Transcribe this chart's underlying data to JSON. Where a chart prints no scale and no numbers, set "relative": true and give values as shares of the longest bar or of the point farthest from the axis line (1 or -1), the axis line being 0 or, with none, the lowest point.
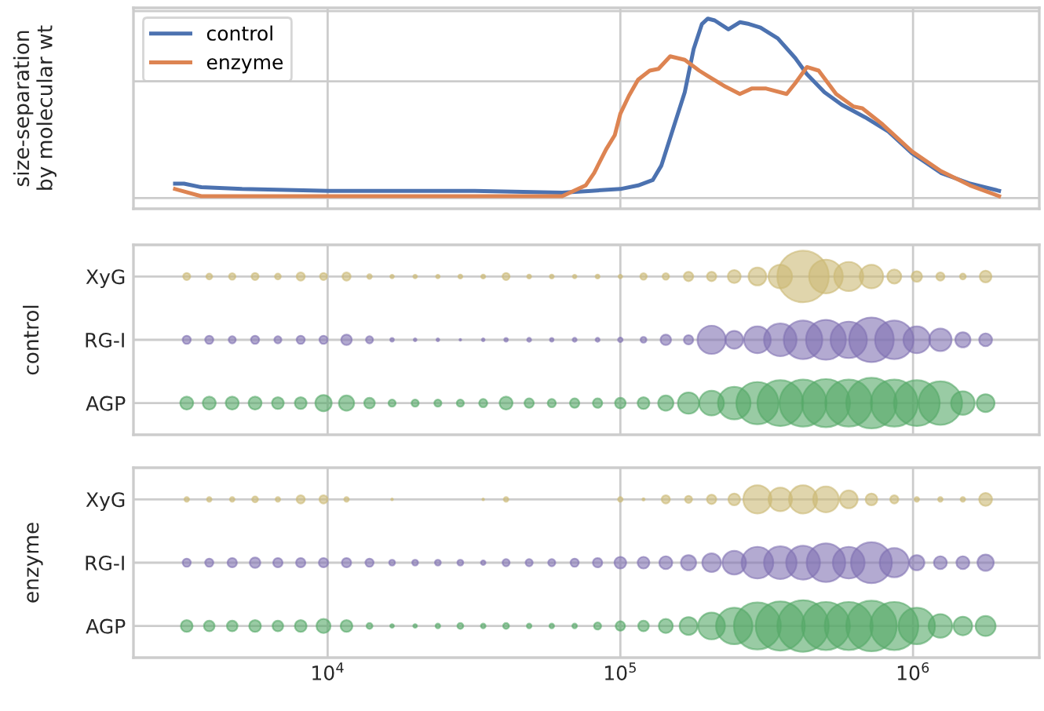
{
  "chart_data": [
    {
      "type": "line",
      "ylabel": "size-separation\nby molecular wt",
      "relative": true,
      "log": "x",
      "xlim": [
        2170,
        2700000
      ],
      "xticks": [
        10000,
        100000,
        1000000
      ],
      "tick_labels": false,
      "grid": true,
      "legend": "top left",
      "series": [
        {
          "name": "control",
          "color": "#4c72b0",
          "x": [
            3010,
            3230,
            3700,
            5100,
            10100,
            31800,
            63300,
            79600,
            100000,
            115000,
            129000,
            138000,
            151000,
            166000,
            178000,
            190000,
            199000,
            210000,
            234000,
            256000,
            275000,
            301000,
            345000,
            396000,
            434000,
            498000,
            571000,
            686000,
            824000,
            991000,
            1245000,
            1567000,
            1968000
          ],
          "values": [
            0.08,
            0.08,
            0.06,
            0.05,
            0.04,
            0.04,
            0.03,
            0.04,
            0.05,
            0.07,
            0.1,
            0.18,
            0.38,
            0.59,
            0.83,
            0.97,
            1.0,
            0.99,
            0.94,
            0.98,
            0.97,
            0.95,
            0.89,
            0.78,
            0.69,
            0.59,
            0.52,
            0.45,
            0.37,
            0.25,
            0.14,
            0.08,
            0.04
          ]
        },
        {
          "name": "enzyme",
          "color": "#dd8452",
          "x": [
            3010,
            3700,
            5100,
            12700,
            31800,
            63300,
            76100,
            81400,
            89300,
            95700,
            100000,
            107000,
            115000,
            126000,
            135000,
            148000,
            166000,
            186000,
            199000,
            229000,
            256000,
            281000,
            315000,
            370000,
            396000,
            434000,
            476000,
            546000,
            626000,
            671000,
            787000,
            991000,
            1245000,
            1567000,
            1968000
          ],
          "values": [
            0.05,
            0.01,
            0.01,
            0.01,
            0.01,
            0.01,
            0.07,
            0.14,
            0.27,
            0.35,
            0.47,
            0.57,
            0.66,
            0.71,
            0.72,
            0.79,
            0.77,
            0.71,
            0.68,
            0.62,
            0.58,
            0.61,
            0.61,
            0.58,
            0.64,
            0.73,
            0.71,
            0.58,
            0.51,
            0.5,
            0.41,
            0.26,
            0.15,
            0.07,
            0.01
          ]
        }
      ]
    },
    {
      "type": "bubble",
      "orientation": "horizontal",
      "ylabel": "control",
      "log": "x",
      "xlim": [
        2170,
        2700000
      ],
      "xticks": [
        10000,
        100000,
        1000000
      ],
      "categories": [
        "XyG",
        "RG-I",
        "AGP"
      ],
      "tick_labels": "y",
      "grid": true,
      "series": [
        {
          "colors": [
            "#ccb974",
            "#8172b3",
            "#55a868"
          ],
          "values": [
            3300,
            3300,
            3300
          ],
          "sizes": [
            0.019,
            0.025,
            0.063
          ]
        },
        {
          "colors": [
            "#ccb974",
            "#8172b3",
            "#55a868"
          ],
          "values": [
            3940,
            3940,
            3940
          ],
          "sizes": [
            0.013,
            0.025,
            0.063
          ]
        },
        {
          "colors": [
            "#ccb974",
            "#8172b3",
            "#55a868"
          ],
          "values": [
            4720,
            4720,
            4720
          ],
          "sizes": [
            0.016,
            0.019,
            0.063
          ]
        },
        {
          "colors": [
            "#ccb974",
            "#8172b3",
            "#55a868"
          ],
          "values": [
            5650,
            5650,
            5650
          ],
          "sizes": [
            0.019,
            0.025,
            0.063
          ]
        },
        {
          "colors": [
            "#ccb974",
            "#8172b3",
            "#55a868"
          ],
          "values": [
            6760,
            6760,
            6760
          ],
          "sizes": [
            0.013,
            0.019,
            0.052
          ]
        },
        {
          "colors": [
            "#ccb974",
            "#8172b3",
            "#55a868"
          ],
          "values": [
            8090,
            8090,
            8090
          ],
          "sizes": [
            0.025,
            0.025,
            0.052
          ]
        },
        {
          "colors": [
            "#ccb974",
            "#8172b3",
            "#55a868"
          ],
          "values": [
            9680,
            9680,
            9680
          ],
          "sizes": [
            0.019,
            0.025,
            0.1
          ]
        },
        {
          "colors": [
            "#ccb974",
            "#8172b3",
            "#55a868"
          ],
          "values": [
            11600,
            11600,
            11600
          ],
          "sizes": [
            0.025,
            0.042,
            0.087
          ]
        },
        {
          "colors": [
            "#ccb974",
            "#8172b3",
            "#55a868"
          ],
          "values": [
            13900,
            13900,
            13900
          ],
          "sizes": [
            0.008,
            0.019,
            0.042
          ]
        },
        {
          "colors": [
            "#ccb974",
            "#8172b3",
            "#55a868"
          ],
          "values": [
            16600,
            16600,
            16600
          ],
          "sizes": [
            0.005,
            0.005,
            0.019
          ]
        },
        {
          "colors": [
            "#ccb974",
            "#8172b3",
            "#55a868"
          ],
          "values": [
            19900,
            19900,
            19900
          ],
          "sizes": [
            0.005,
            0.003,
            0.019
          ]
        },
        {
          "colors": [
            "#ccb974",
            "#8172b3",
            "#55a868"
          ],
          "values": [
            23800,
            23800,
            23800
          ],
          "sizes": [
            0.005,
            0.003,
            0.019
          ]
        },
        {
          "colors": [
            "#ccb974",
            "#8172b3",
            "#55a868"
          ],
          "values": [
            28400,
            28400,
            28400
          ],
          "sizes": [
            0.006,
            0.0012,
            0.019
          ]
        },
        {
          "colors": [
            "#ccb974",
            "#8172b3",
            "#55a868"
          ],
          "values": [
            34000,
            34000,
            34000
          ],
          "sizes": [
            0.006,
            0.003,
            0.025
          ]
        },
        {
          "colors": [
            "#ccb974",
            "#8172b3",
            "#55a868"
          ],
          "values": [
            40700,
            40700,
            40700
          ],
          "sizes": [
            0.019,
            0.005,
            0.063
          ]
        },
        {
          "colors": [
            "#ccb974",
            "#8172b3",
            "#55a868"
          ],
          "values": [
            48800,
            48800,
            48800
          ],
          "sizes": [
            0.006,
            0.006,
            0.033
          ]
        },
        {
          "colors": [
            "#ccb974",
            "#8172b3",
            "#55a868"
          ],
          "values": [
            58300,
            58300,
            58300
          ],
          "sizes": [
            0.006,
            0.005,
            0.025
          ]
        },
        {
          "colors": [
            "#ccb974",
            "#8172b3",
            "#55a868"
          ],
          "values": [
            69800,
            69800,
            69800
          ],
          "sizes": [
            0.005,
            0.006,
            0.033
          ]
        },
        {
          "colors": [
            "#ccb974",
            "#8172b3",
            "#55a868"
          ],
          "values": [
            83600,
            83600,
            83600
          ],
          "sizes": [
            0.006,
            0.006,
            0.033
          ]
        },
        {
          "colors": [
            "#ccb974",
            "#8172b3",
            "#55a868"
          ],
          "values": [
            100000,
            100000,
            100000
          ],
          "sizes": [
            0.005,
            0.008,
            0.042
          ]
        },
        {
          "colors": [
            "#ccb974",
            "#8172b3",
            "#55a868"
          ],
          "values": [
            120000,
            120000,
            120000
          ],
          "sizes": [
            0.016,
            0.013,
            0.052
          ]
        },
        {
          "colors": [
            "#ccb974",
            "#8172b3",
            "#55a868"
          ],
          "values": [
            143000,
            143000,
            143000
          ],
          "sizes": [
            0.016,
            0.042,
            0.087
          ]
        },
        {
          "colors": [
            "#ccb974",
            "#8172b3",
            "#55a868"
          ],
          "values": [
            171000,
            171000,
            171000
          ],
          "sizes": [
            0.033,
            0.033,
            0.17
          ]
        },
        {
          "colors": [
            "#ccb974",
            "#8172b3",
            "#55a868"
          ],
          "values": [
            205000,
            205000,
            205000
          ],
          "sizes": [
            0.033,
            0.3,
            0.23
          ]
        },
        {
          "colors": [
            "#ccb974",
            "#8172b3",
            "#55a868"
          ],
          "values": [
            245000,
            245000,
            245000
          ],
          "sizes": [
            0.063,
            0.12,
            0.4
          ]
        },
        {
          "colors": [
            "#ccb974",
            "#8172b3",
            "#55a868"
          ],
          "values": [
            294000,
            294000,
            294000
          ],
          "sizes": [
            0.12,
            0.27,
            0.67
          ]
        },
        {
          "colors": [
            "#ccb974",
            "#8172b3",
            "#55a868"
          ],
          "values": [
            352000,
            352000,
            352000
          ],
          "sizes": [
            0.21,
            0.4,
            0.79
          ]
        },
        {
          "colors": [
            "#ccb974",
            "#8172b3",
            "#55a868"
          ],
          "values": [
            421000,
            421000,
            421000
          ],
          "sizes": [
            1,
            0.56,
            0.83
          ]
        },
        {
          "colors": [
            "#ccb974",
            "#8172b3",
            "#55a868"
          ],
          "values": [
            504000,
            504000,
            504000
          ],
          "sizes": [
            0.43,
            0.6,
            0.87
          ]
        },
        {
          "colors": [
            "#ccb974",
            "#8172b3",
            "#55a868"
          ],
          "values": [
            603000,
            603000,
            603000
          ],
          "sizes": [
            0.32,
            0.5,
            0.83
          ]
        },
        {
          "colors": [
            "#ccb974",
            "#8172b3",
            "#55a868"
          ],
          "values": [
            721000,
            721000,
            721000
          ],
          "sizes": [
            0.21,
            0.75,
            0.96
          ]
        },
        {
          "colors": [
            "#ccb974",
            "#8172b3",
            "#55a868"
          ],
          "values": [
            863000,
            863000,
            863000
          ],
          "sizes": [
            0.074,
            0.56,
            0.83
          ]
        },
        {
          "colors": [
            "#ccb974",
            "#8172b3",
            "#55a868"
          ],
          "values": [
            1030000,
            1030000,
            1030000
          ],
          "sizes": [
            0.042,
            0.27,
            0.79
          ]
        },
        {
          "colors": [
            "#ccb974",
            "#8172b3",
            "#55a868"
          ],
          "values": [
            1240000,
            1240000,
            1240000
          ],
          "sizes": [
            0.025,
            0.19,
            0.71
          ]
        },
        {
          "colors": [
            "#ccb974",
            "#8172b3",
            "#55a868"
          ],
          "values": [
            1480000,
            1480000,
            1480000
          ],
          "sizes": [
            0.013,
            0.087,
            0.21
          ]
        },
        {
          "colors": [
            "#ccb974",
            "#8172b3",
            "#55a868"
          ],
          "values": [
            1770000,
            1770000,
            1770000
          ],
          "sizes": [
            0.052,
            0.063,
            0.12
          ]
        }
      ]
    },
    {
      "type": "bubble",
      "orientation": "horizontal",
      "ylabel": "enzyme",
      "log": "x",
      "xlim": [
        2170,
        2700000
      ],
      "xticks": [
        {
          "value": 10000,
          "label": "10$^{4}$"
        },
        {
          "value": 100000,
          "label": "10$^{5}$"
        },
        {
          "value": 1000000,
          "label": "10$^{6}$"
        }
      ],
      "categories": [
        "XyG",
        "RG-I",
        "AGP"
      ],
      "grid": true,
      "series": [
        {
          "colors": [
            "#ccb974",
            "#8172b3",
            "#55a868"
          ],
          "values": [
            3300,
            3300,
            3300
          ],
          "sizes": [
            0.008,
            0.025,
            0.052
          ]
        },
        {
          "colors": [
            "#ccb974",
            "#8172b3",
            "#55a868"
          ],
          "values": [
            3940,
            3940,
            3940
          ],
          "sizes": [
            0.008,
            0.025,
            0.042
          ]
        },
        {
          "colors": [
            "#ccb974",
            "#8172b3",
            "#55a868"
          ],
          "values": [
            4720,
            4720,
            4720
          ],
          "sizes": [
            0.008,
            0.033,
            0.042
          ]
        },
        {
          "colors": [
            "#ccb974",
            "#8172b3",
            "#55a868"
          ],
          "values": [
            5650,
            5650,
            5650
          ],
          "sizes": [
            0.013,
            0.042,
            0.052
          ]
        },
        {
          "colors": [
            "#ccb974",
            "#8172b3",
            "#55a868"
          ],
          "values": [
            6760,
            6760,
            6760
          ],
          "sizes": [
            0.008,
            0.033,
            0.042
          ]
        },
        {
          "colors": [
            "#ccb974",
            "#8172b3",
            "#55a868"
          ],
          "values": [
            8090,
            8090,
            8090
          ],
          "sizes": [
            0.025,
            0.033,
            0.052
          ]
        },
        {
          "colors": [
            "#ccb974",
            "#8172b3",
            "#55a868"
          ],
          "values": [
            9680,
            9680,
            9680
          ],
          "sizes": [
            0.025,
            0.033,
            0.074
          ]
        },
        {
          "colors": [
            "#ccb974",
            "#8172b3",
            "#55a868"
          ],
          "values": [
            11600,
            11600,
            11600
          ],
          "sizes": [
            0.008,
            0.033,
            0.052
          ]
        },
        {
          "colors": [
            "#ccb974",
            "#8172b3",
            "#55a868"
          ],
          "values": [
            null,
            13900,
            13900
          ],
          "sizes": [
            null,
            0.025,
            0.013
          ]
        },
        {
          "colors": [
            "#ccb974",
            "#8172b3",
            "#55a868"
          ],
          "values": [
            16600,
            16600,
            16600
          ],
          "sizes": [
            0.0012,
            0.013,
            0.005
          ]
        },
        {
          "colors": [
            "#ccb974",
            "#8172b3",
            "#55a868"
          ],
          "values": [
            null,
            19900,
            19900
          ],
          "sizes": [
            null,
            0.013,
            0.005
          ]
        },
        {
          "colors": [
            "#ccb974",
            "#8172b3",
            "#55a868"
          ],
          "values": [
            null,
            23800,
            23800
          ],
          "sizes": [
            null,
            0.013,
            0.008
          ]
        },
        {
          "colors": [
            "#ccb974",
            "#8172b3",
            "#55a868"
          ],
          "values": [
            null,
            28400,
            28400
          ],
          "sizes": [
            null,
            0.013,
            0.013
          ]
        },
        {
          "colors": [
            "#ccb974",
            "#8172b3",
            "#55a868"
          ],
          "values": [
            34000,
            34000,
            34000
          ],
          "sizes": [
            0.0012,
            0.008,
            0.008
          ]
        },
        {
          "colors": [
            "#ccb974",
            "#8172b3",
            "#55a868"
          ],
          "values": [
            40700,
            40700,
            40700
          ],
          "sizes": [
            0.008,
            0.019,
            0.013
          ]
        },
        {
          "colors": [
            "#ccb974",
            "#8172b3",
            "#55a868"
          ],
          "values": [
            null,
            48800,
            48800
          ],
          "sizes": [
            null,
            0.019,
            0.008
          ]
        },
        {
          "colors": [
            "#ccb974",
            "#8172b3",
            "#55a868"
          ],
          "values": [
            null,
            58300,
            58300
          ],
          "sizes": [
            null,
            0.019,
            0.008
          ]
        },
        {
          "colors": [
            "#ccb974",
            "#8172b3",
            "#55a868"
          ],
          "values": [
            null,
            69800,
            69800
          ],
          "sizes": [
            null,
            0.025,
            0.008
          ]
        },
        {
          "colors": [
            "#ccb974",
            "#8172b3",
            "#55a868"
          ],
          "values": [
            null,
            83600,
            83600
          ],
          "sizes": [
            null,
            0.033,
            0.019
          ]
        },
        {
          "colors": [
            "#ccb974",
            "#8172b3",
            "#55a868"
          ],
          "values": [
            100000,
            100000,
            100000
          ],
          "sizes": [
            0.008,
            0.052,
            0.033
          ]
        },
        {
          "colors": [
            "#ccb974",
            "#8172b3",
            "#55a868"
          ],
          "values": [
            120000,
            120000,
            120000
          ],
          "sizes": [
            0.002,
            0.052,
            0.042
          ]
        },
        {
          "colors": [
            "#ccb974",
            "#8172b3",
            "#55a868"
          ],
          "values": [
            143000,
            143000,
            143000
          ],
          "sizes": [
            0.025,
            0.063,
            0.074
          ]
        },
        {
          "colors": [
            "#ccb974",
            "#8172b3",
            "#55a868"
          ],
          "values": [
            171000,
            171000,
            171000
          ],
          "sizes": [
            0.019,
            0.087,
            0.12
          ]
        },
        {
          "colors": [
            "#ccb974",
            "#8172b3",
            "#55a868"
          ],
          "values": [
            205000,
            205000,
            205000
          ],
          "sizes": [
            0.033,
            0.13,
            0.27
          ]
        },
        {
          "colors": [
            "#ccb974",
            "#8172b3",
            "#55a868"
          ],
          "values": [
            245000,
            245000,
            245000
          ],
          "sizes": [
            0.052,
            0.21,
            0.5
          ]
        },
        {
          "colors": [
            "#ccb974",
            "#8172b3",
            "#55a868"
          ],
          "values": [
            294000,
            294000,
            294000
          ],
          "sizes": [
            0.3,
            0.38,
            0.83
          ]
        },
        {
          "colors": [
            "#ccb974",
            "#8172b3",
            "#55a868"
          ],
          "values": [
            352000,
            352000,
            352000
          ],
          "sizes": [
            0.21,
            0.4,
            0.91
          ]
        },
        {
          "colors": [
            "#ccb974",
            "#8172b3",
            "#55a868"
          ],
          "values": [
            421000,
            421000,
            421000
          ],
          "sizes": [
            0.3,
            0.43,
            1
          ]
        },
        {
          "colors": [
            "#ccb974",
            "#8172b3",
            "#55a868"
          ],
          "values": [
            504000,
            504000,
            504000
          ],
          "sizes": [
            0.25,
            0.56,
            0.87
          ]
        },
        {
          "colors": [
            "#ccb974",
            "#8172b3",
            "#55a868"
          ],
          "values": [
            603000,
            603000,
            603000
          ],
          "sizes": [
            0.12,
            0.38,
            0.87
          ]
        },
        {
          "colors": [
            "#ccb974",
            "#8172b3",
            "#55a868"
          ],
          "values": [
            721000,
            721000,
            721000
          ],
          "sizes": [
            0.052,
            0.63,
            0.96
          ]
        },
        {
          "colors": [
            "#ccb974",
            "#8172b3",
            "#55a868"
          ],
          "values": [
            863000,
            863000,
            863000
          ],
          "sizes": [
            0.025,
            0.32,
            0.87
          ]
        },
        {
          "colors": [
            "#ccb974",
            "#8172b3",
            "#55a868"
          ],
          "values": [
            1030000,
            1030000,
            1030000
          ],
          "sizes": [
            0.008,
            0.087,
            0.5
          ]
        },
        {
          "colors": [
            "#ccb974",
            "#8172b3",
            "#55a868"
          ],
          "values": [
            1240000,
            1240000,
            1240000
          ],
          "sizes": [
            0.008,
            0.063,
            0.21
          ]
        },
        {
          "colors": [
            "#ccb974",
            "#8172b3",
            "#55a868"
          ],
          "values": [
            1480000,
            1480000,
            1480000
          ],
          "sizes": [
            0.008,
            0.063,
            0.13
          ]
        },
        {
          "colors": [
            "#ccb974",
            "#8172b3",
            "#55a868"
          ],
          "values": [
            1770000,
            1770000,
            1770000
          ],
          "sizes": [
            0.063,
            0.1,
            0.15
          ]
        }
      ]
    }
  ]
}
